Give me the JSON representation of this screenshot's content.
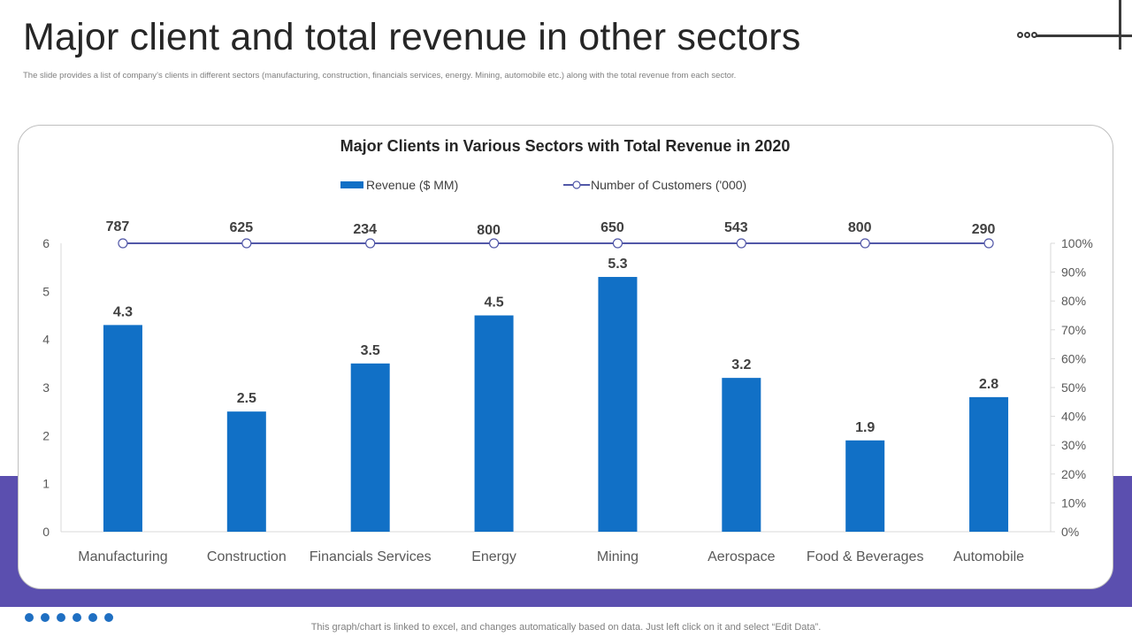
{
  "slide": {
    "title": "Major client and total revenue in other sectors",
    "subtitle": "The slide provides a list of company’s clients in different sectors (manufacturing, construction, financials services, energy. Mining, automobile etc.) along with the total revenue from each sector.",
    "footer_note": "This graph/chart is linked to excel,  and changes automatically based on data. Just left click on it and select “Edit Data”."
  },
  "colors": {
    "bar": "#1170c6",
    "line": "#5258a8",
    "band": "#5b4faf",
    "footer_dots": "#1f6fc2"
  },
  "chart_data": {
    "type": "bar",
    "title": "Major Clients in Various Sectors with Total Revenue in 2020",
    "categories": [
      "Manufacturing",
      "Construction",
      "Financials Services",
      "Energy",
      "Mining",
      "Aerospace",
      "Food & Beverages",
      "Automobile"
    ],
    "series": [
      {
        "name": "Revenue ($ MM)",
        "type": "bar",
        "axis": "left",
        "values": [
          4.3,
          2.5,
          3.5,
          4.5,
          5.3,
          3.2,
          1.9,
          2.8
        ]
      },
      {
        "name": "Number of Customers ('000)",
        "type": "line",
        "axis": "right",
        "values": [
          787,
          625,
          234,
          800,
          650,
          543,
          800,
          290
        ],
        "plotted_percent": [
          100,
          100,
          100,
          100,
          100,
          100,
          100,
          100
        ]
      }
    ],
    "ylim": [
      0,
      6
    ],
    "yticks": [
      "0",
      "1",
      "2",
      "3",
      "4",
      "5",
      "6"
    ],
    "y2lim": [
      0,
      100
    ],
    "y2ticks": [
      "0%",
      "10%",
      "20%",
      "30%",
      "40%",
      "50%",
      "60%",
      "70%",
      "80%",
      "90%",
      "100%"
    ],
    "legend_position": "top",
    "grid": false
  }
}
